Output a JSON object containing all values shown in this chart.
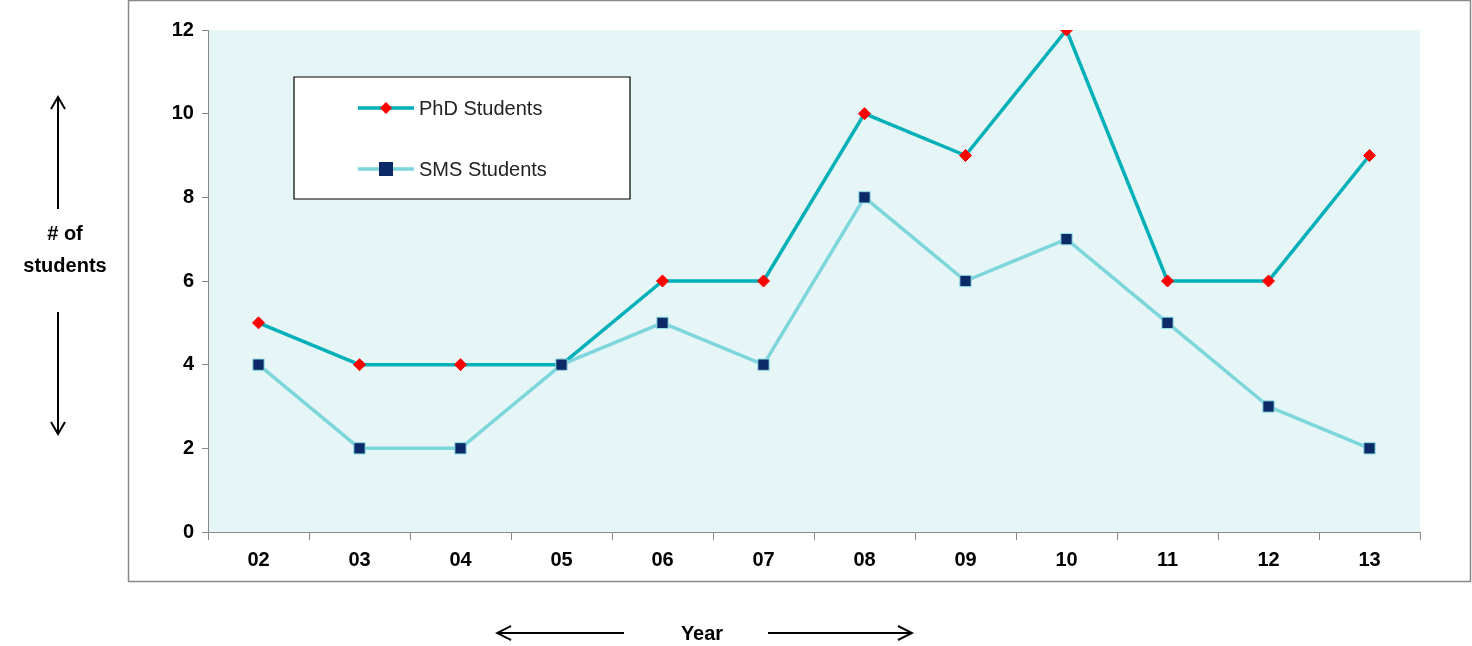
{
  "chart_data": {
    "type": "line",
    "xlabel": "Year",
    "ylabel": "# of students",
    "categories": [
      "02",
      "03",
      "04",
      "05",
      "06",
      "07",
      "08",
      "09",
      "10",
      "11",
      "12",
      "13"
    ],
    "series": [
      {
        "name": "PhD Students",
        "color": "#00b0b9",
        "marker": "diamond",
        "values": [
          5,
          4,
          4,
          4,
          6,
          6,
          10,
          9,
          12,
          6,
          6,
          9
        ]
      },
      {
        "name": "SMS Students",
        "color": "#7dd6dc",
        "marker": "square",
        "values": [
          4,
          2,
          2,
          4,
          5,
          4,
          8,
          6,
          7,
          5,
          3,
          2
        ]
      }
    ],
    "ylim": [
      0,
      12
    ],
    "yticks": [
      0,
      2,
      4,
      6,
      8,
      10,
      12
    ],
    "grid": false,
    "legend": "top left"
  }
}
